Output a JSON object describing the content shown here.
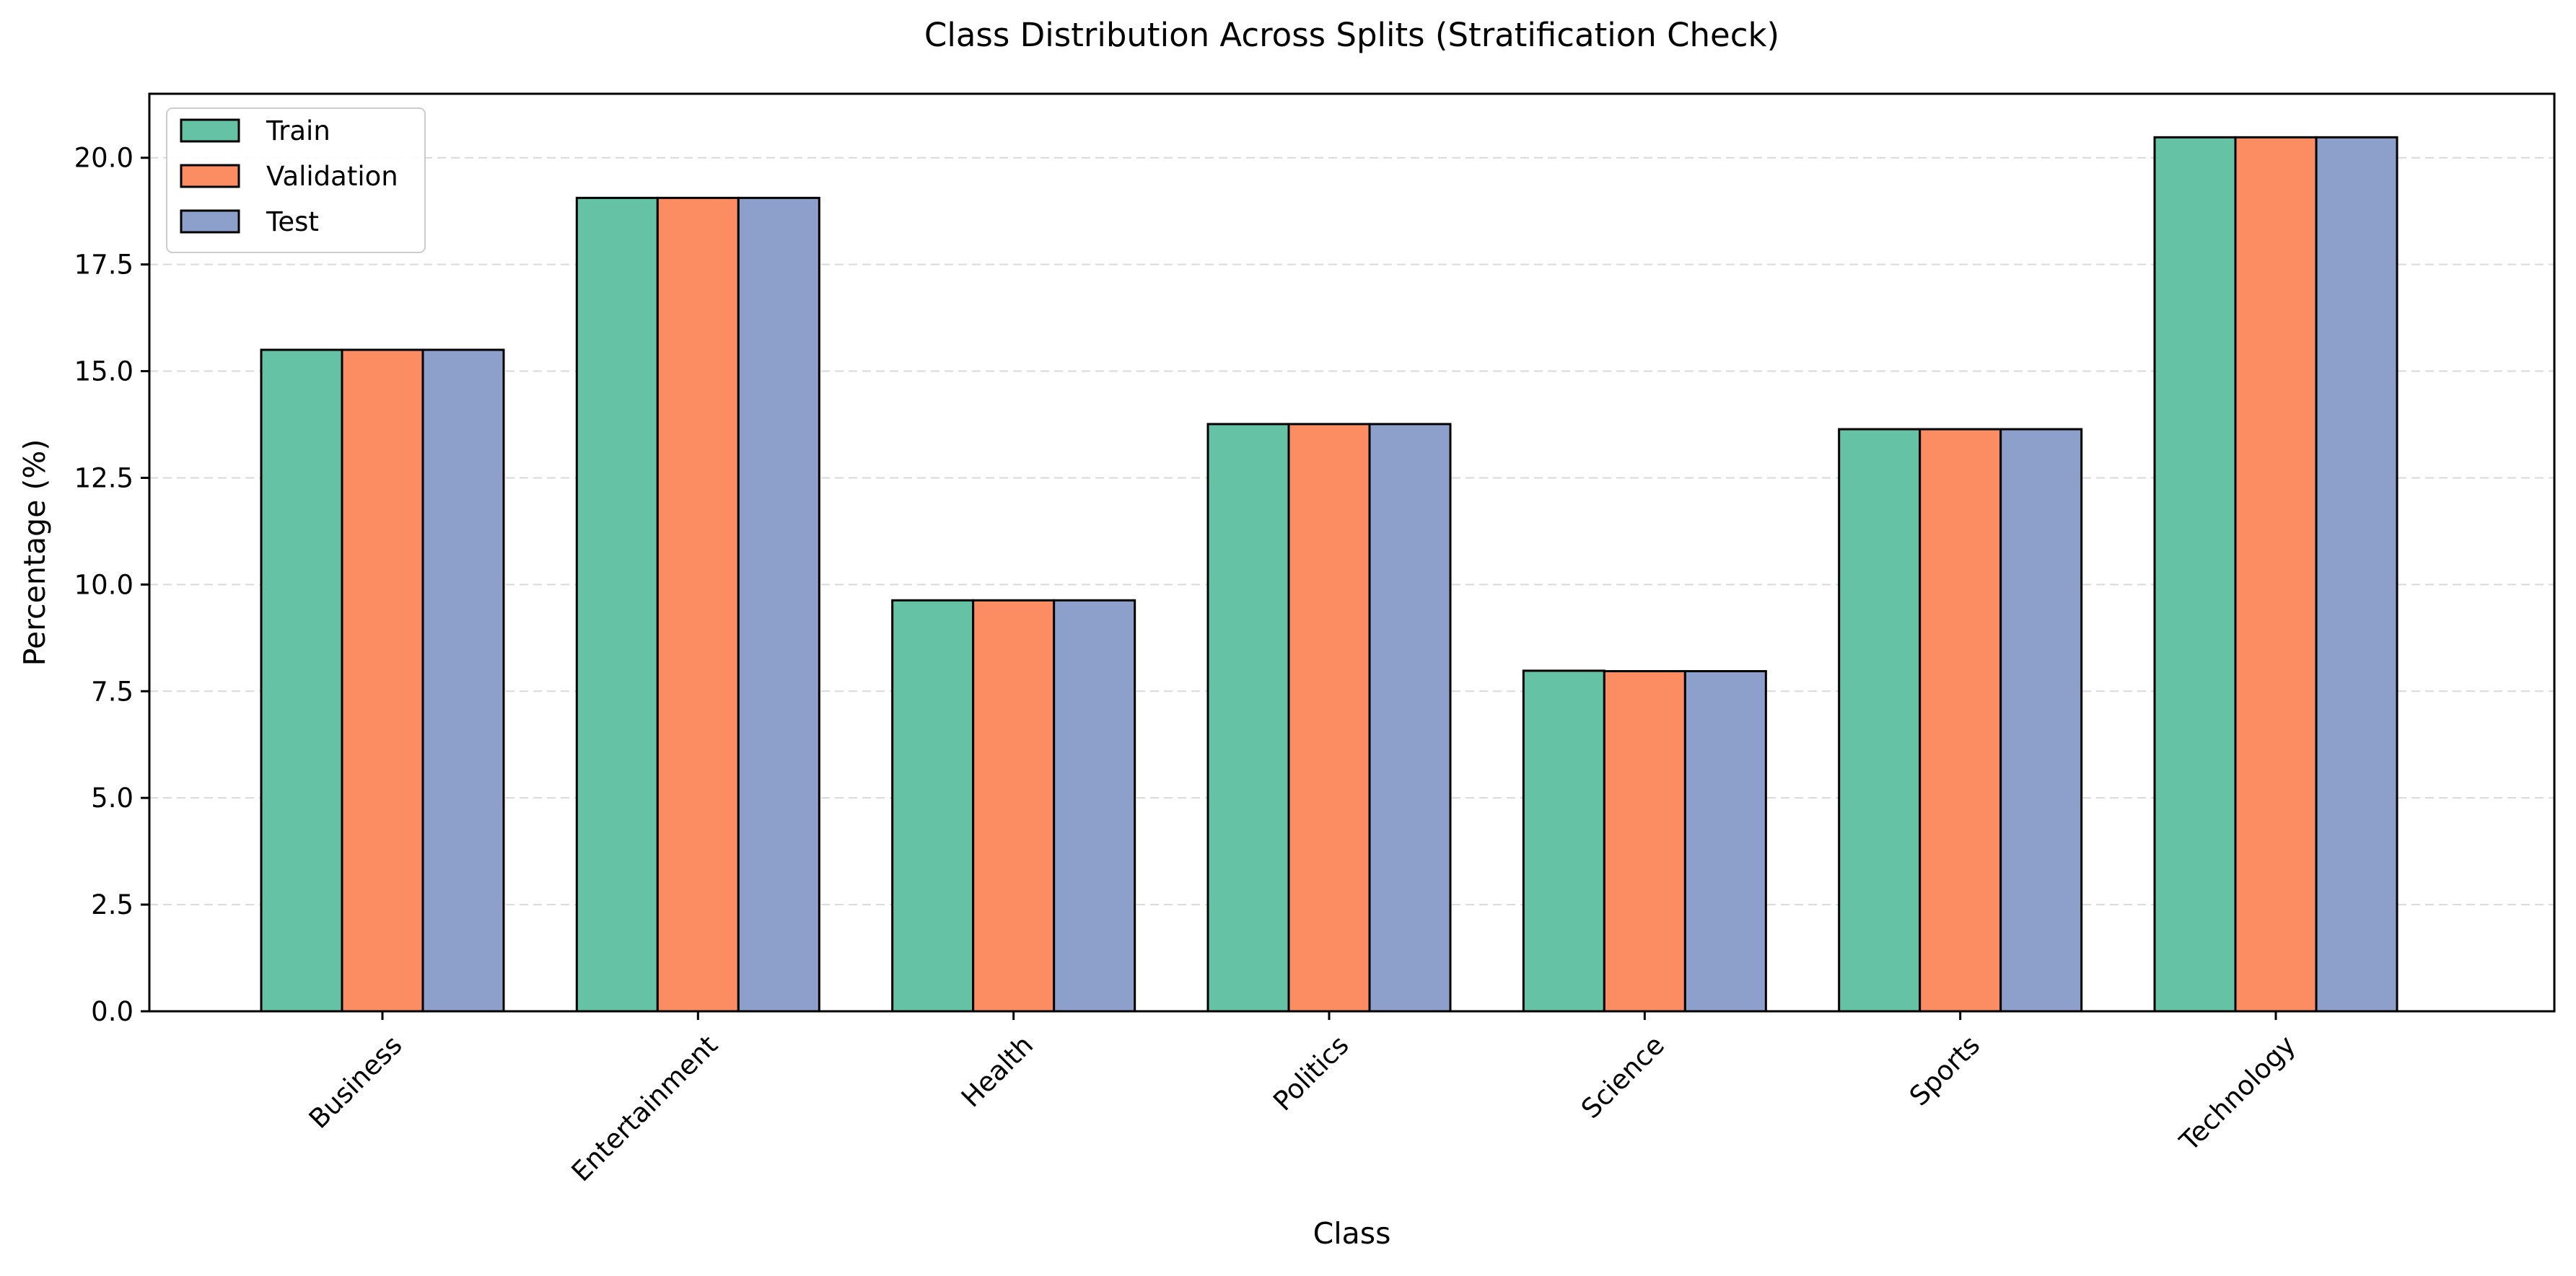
{
  "chart_data": {
    "type": "bar",
    "title": "Class Distribution Across Splits (Stratification Check)",
    "xlabel": "Class",
    "ylabel": "Percentage (%)",
    "categories": [
      "Business",
      "Entertainment",
      "Health",
      "Politics",
      "Science",
      "Sports",
      "Technology"
    ],
    "series": [
      {
        "name": "Train",
        "color": "#66c2a5",
        "values": [
          15.5,
          19.06,
          9.63,
          13.76,
          7.98,
          13.64,
          20.48
        ]
      },
      {
        "name": "Validation",
        "color": "#fc8d62",
        "values": [
          15.5,
          19.06,
          9.63,
          13.76,
          7.97,
          13.64,
          20.48
        ]
      },
      {
        "name": "Test",
        "color": "#8da0cb",
        "values": [
          15.5,
          19.06,
          9.63,
          13.76,
          7.97,
          13.64,
          20.48
        ]
      }
    ],
    "ylim": [
      0,
      21.5
    ],
    "yticks": [
      0.0,
      2.5,
      5.0,
      7.5,
      10.0,
      12.5,
      15.0,
      17.5,
      20.0
    ],
    "ytick_labels": [
      "0.0",
      "2.5",
      "5.0",
      "7.5",
      "10.0",
      "12.5",
      "15.0",
      "17.5",
      "20.0"
    ],
    "grid": {
      "axis": "y",
      "style": "dashed",
      "color": "#d9d9d9"
    },
    "legend": {
      "position": "top-left"
    },
    "bar_edge_color": "#000000"
  }
}
